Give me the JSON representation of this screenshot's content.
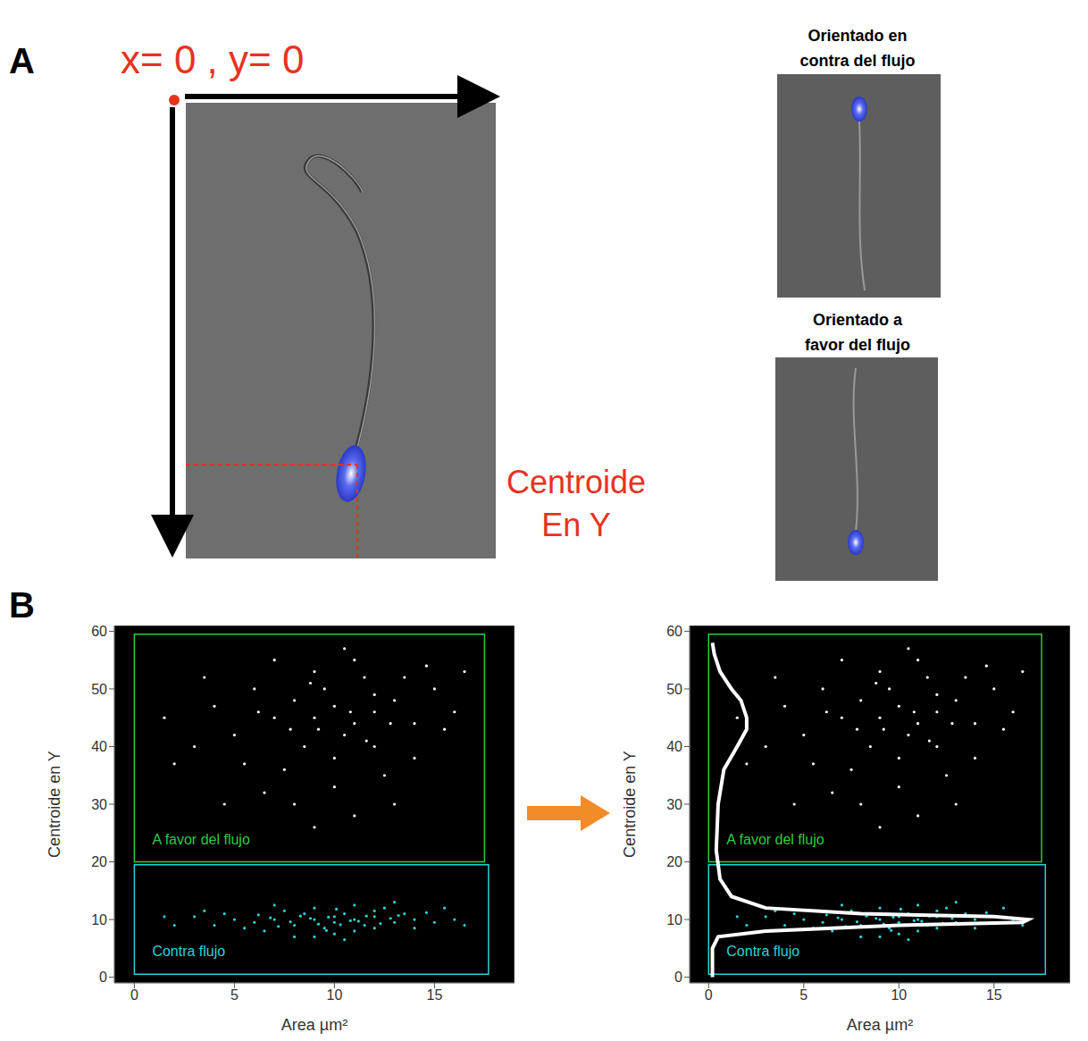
{
  "panel_labels": [
    "A",
    "B"
  ],
  "panel_a": {
    "origin_label": "x= 0 , y= 0",
    "centroid_label": [
      "Centroide",
      "En Y"
    ],
    "image_titles": [
      [
        "Orientado en",
        "contra del flujo"
      ],
      [
        "Orientado a",
        "favor del flujo"
      ]
    ]
  },
  "chart_data": [
    {
      "type": "scatter",
      "x_label": "Area µm²",
      "y_label": "Centroide en Y",
      "xlim": [
        -1,
        19
      ],
      "xticks": [
        0,
        5,
        10,
        15
      ],
      "ylim": [
        -1,
        61
      ],
      "yticks": [
        0,
        10,
        20,
        30,
        40,
        50,
        60
      ],
      "gates": [
        {
          "name": "A favor del flujo",
          "color": "#2ecc40",
          "x": [
            0,
            17.5
          ],
          "y": [
            20,
            59.5
          ]
        },
        {
          "name": "Contra flujo",
          "color": "#2ad4d4",
          "x": [
            0,
            17.7
          ],
          "y": [
            0.5,
            19.5
          ]
        }
      ],
      "series": [
        {
          "type": "scatter",
          "color": "#ffffff",
          "points": [
            [
              9,
              45
            ],
            [
              10,
              47
            ],
            [
              11,
              44
            ],
            [
              8,
              48
            ],
            [
              12,
              46
            ],
            [
              9.5,
              50
            ],
            [
              10.5,
              42
            ],
            [
              7,
              45
            ],
            [
              13,
              48
            ],
            [
              11.5,
              52
            ],
            [
              8.5,
              40
            ],
            [
              10,
              38
            ],
            [
              12,
              40
            ],
            [
              6,
              50
            ],
            [
              14,
              44
            ],
            [
              9,
              53
            ],
            [
              11,
              55
            ],
            [
              7.5,
              36
            ],
            [
              13.5,
              52
            ],
            [
              10,
              33
            ],
            [
              5,
              42
            ],
            [
              15,
              50
            ],
            [
              4,
              47
            ],
            [
              12.5,
              35
            ],
            [
              8,
              30
            ],
            [
              11,
              28
            ],
            [
              6.5,
              32
            ],
            [
              14,
              38
            ],
            [
              9,
              26
            ],
            [
              3,
              40
            ],
            [
              16,
              46
            ],
            [
              2,
              37
            ],
            [
              13,
              30
            ],
            [
              7,
              55
            ],
            [
              10.5,
              57
            ],
            [
              12,
              49
            ],
            [
              9.2,
              43
            ],
            [
              10.8,
              46
            ],
            [
              8.8,
              51
            ],
            [
              11.6,
              41
            ],
            [
              7.8,
              43
            ],
            [
              12.8,
              44
            ],
            [
              6.2,
              46
            ],
            [
              14.6,
              54
            ],
            [
              5.5,
              37
            ],
            [
              3.5,
              52
            ],
            [
              15.5,
              43
            ],
            [
              1.5,
              45
            ],
            [
              4.5,
              30
            ],
            [
              16.5,
              53
            ]
          ]
        },
        {
          "type": "scatter",
          "color": "#2ad4d4",
          "points": [
            [
              9,
              10
            ],
            [
              10,
              9.5
            ],
            [
              11,
              10
            ],
            [
              8,
              9
            ],
            [
              12,
              10.5
            ],
            [
              9.5,
              8.5
            ],
            [
              10.5,
              11
            ],
            [
              7,
              10
            ],
            [
              13,
              9.5
            ],
            [
              11.5,
              9
            ],
            [
              8.5,
              11
            ],
            [
              10,
              10.5
            ],
            [
              12,
              8.5
            ],
            [
              6,
              9.5
            ],
            [
              14,
              10
            ],
            [
              9,
              12
            ],
            [
              11,
              8
            ],
            [
              7.5,
              11.5
            ],
            [
              13.5,
              11
            ],
            [
              10,
              7.5
            ],
            [
              5,
              10
            ],
            [
              15,
              9.5
            ],
            [
              4,
              9
            ],
            [
              12.5,
              12
            ],
            [
              8,
              7
            ],
            [
              11,
              12.5
            ],
            [
              6.5,
              8
            ],
            [
              14,
              8.5
            ],
            [
              9,
              7
            ],
            [
              3,
              10.5
            ],
            [
              16,
              10
            ],
            [
              2,
              9
            ],
            [
              13,
              13
            ],
            [
              7,
              12.5
            ],
            [
              10.5,
              6.5
            ],
            [
              12,
              11.5
            ],
            [
              9.2,
              9.2
            ],
            [
              10.8,
              9.8
            ],
            [
              8.8,
              10.2
            ],
            [
              11.6,
              10.6
            ],
            [
              7.8,
              9.6
            ],
            [
              12.8,
              10.2
            ],
            [
              6.2,
              10.8
            ],
            [
              14.6,
              11.2
            ],
            [
              5.5,
              8.5
            ],
            [
              3.5,
              11.5
            ],
            [
              15.5,
              12
            ],
            [
              1.5,
              10.5
            ],
            [
              4.5,
              11
            ],
            [
              16.5,
              9
            ],
            [
              9.7,
              10.4
            ],
            [
              10.3,
              9.1
            ],
            [
              11.2,
              9.7
            ],
            [
              8.3,
              10.6
            ],
            [
              12.3,
              9.3
            ],
            [
              7.2,
              8.8
            ],
            [
              13.2,
              10.7
            ],
            [
              6.8,
              10.3
            ],
            [
              10.1,
              11.8
            ],
            [
              9.6,
              8.1
            ]
          ]
        }
      ]
    },
    {
      "type": "scatter",
      "x_label": "Area µm²",
      "y_label": "Centroide en Y",
      "xlim": [
        -1,
        19
      ],
      "xticks": [
        0,
        5,
        10,
        15
      ],
      "ylim": [
        -1,
        61
      ],
      "yticks": [
        0,
        10,
        20,
        30,
        40,
        50,
        60
      ],
      "gates": [
        {
          "name": "A favor del flujo",
          "color": "#2ecc40",
          "x": [
            0,
            17.5
          ],
          "y": [
            20,
            59.5
          ]
        },
        {
          "name": "Contra flujo",
          "color": "#2ad4d4",
          "x": [
            0,
            17.7
          ],
          "y": [
            0.5,
            19.5
          ]
        }
      ],
      "series": [
        {
          "type": "scatter",
          "color": "#ffffff",
          "points": [
            [
              9,
              45
            ],
            [
              10,
              47
            ],
            [
              11,
              44
            ],
            [
              8,
              48
            ],
            [
              12,
              46
            ],
            [
              9.5,
              50
            ],
            [
              10.5,
              42
            ],
            [
              7,
              45
            ],
            [
              13,
              48
            ],
            [
              11.5,
              52
            ],
            [
              8.5,
              40
            ],
            [
              10,
              38
            ],
            [
              12,
              40
            ],
            [
              6,
              50
            ],
            [
              14,
              44
            ],
            [
              9,
              53
            ],
            [
              11,
              55
            ],
            [
              7.5,
              36
            ],
            [
              13.5,
              52
            ],
            [
              10,
              33
            ],
            [
              5,
              42
            ],
            [
              15,
              50
            ],
            [
              4,
              47
            ],
            [
              12.5,
              35
            ],
            [
              8,
              30
            ],
            [
              11,
              28
            ],
            [
              6.5,
              32
            ],
            [
              14,
              38
            ],
            [
              9,
              26
            ],
            [
              3,
              40
            ],
            [
              16,
              46
            ],
            [
              2,
              37
            ],
            [
              13,
              30
            ],
            [
              7,
              55
            ],
            [
              10.5,
              57
            ],
            [
              12,
              49
            ],
            [
              9.2,
              43
            ],
            [
              10.8,
              46
            ],
            [
              8.8,
              51
            ],
            [
              11.6,
              41
            ],
            [
              7.8,
              43
            ],
            [
              12.8,
              44
            ],
            [
              6.2,
              46
            ],
            [
              14.6,
              54
            ],
            [
              5.5,
              37
            ],
            [
              3.5,
              52
            ],
            [
              15.5,
              43
            ],
            [
              1.5,
              45
            ],
            [
              4.5,
              30
            ],
            [
              16.5,
              53
            ]
          ]
        },
        {
          "type": "scatter",
          "color": "#2ad4d4",
          "points": [
            [
              9,
              10
            ],
            [
              10,
              9.5
            ],
            [
              11,
              10
            ],
            [
              8,
              9
            ],
            [
              12,
              10.5
            ],
            [
              9.5,
              8.5
            ],
            [
              10.5,
              11
            ],
            [
              7,
              10
            ],
            [
              13,
              9.5
            ],
            [
              11.5,
              9
            ],
            [
              8.5,
              11
            ],
            [
              10,
              10.5
            ],
            [
              12,
              8.5
            ],
            [
              6,
              9.5
            ],
            [
              14,
              10
            ],
            [
              9,
              12
            ],
            [
              11,
              8
            ],
            [
              7.5,
              11.5
            ],
            [
              13.5,
              11
            ],
            [
              10,
              7.5
            ],
            [
              5,
              10
            ],
            [
              15,
              9.5
            ],
            [
              4,
              9
            ],
            [
              12.5,
              12
            ],
            [
              8,
              7
            ],
            [
              11,
              12.5
            ],
            [
              6.5,
              8
            ],
            [
              14,
              8.5
            ],
            [
              9,
              7
            ],
            [
              3,
              10.5
            ],
            [
              16,
              10
            ],
            [
              2,
              9
            ],
            [
              13,
              13
            ],
            [
              7,
              12.5
            ],
            [
              10.5,
              6.5
            ],
            [
              12,
              11.5
            ],
            [
              9.2,
              9.2
            ],
            [
              10.8,
              9.8
            ],
            [
              8.8,
              10.2
            ],
            [
              11.6,
              10.6
            ],
            [
              7.8,
              9.6
            ],
            [
              12.8,
              10.2
            ],
            [
              6.2,
              10.8
            ],
            [
              14.6,
              11.2
            ],
            [
              5.5,
              8.5
            ],
            [
              3.5,
              11.5
            ],
            [
              15.5,
              12
            ],
            [
              1.5,
              10.5
            ],
            [
              4.5,
              11
            ],
            [
              16.5,
              9
            ],
            [
              9.7,
              10.4
            ],
            [
              10.3,
              9.1
            ],
            [
              11.2,
              9.7
            ],
            [
              8.3,
              10.6
            ],
            [
              12.3,
              9.3
            ],
            [
              7.2,
              8.8
            ],
            [
              13.2,
              10.7
            ],
            [
              6.8,
              10.3
            ],
            [
              10.1,
              11.8
            ],
            [
              9.6,
              8.1
            ]
          ]
        },
        {
          "type": "line",
          "color": "#ffffff",
          "points": [
            [
              0.2,
              0
            ],
            [
              0.2,
              5
            ],
            [
              0.5,
              7
            ],
            [
              3,
              8
            ],
            [
              10,
              9
            ],
            [
              16.5,
              9.5
            ],
            [
              16.8,
              10
            ],
            [
              15,
              10.5
            ],
            [
              8,
              11
            ],
            [
              3,
              12
            ],
            [
              1.2,
              14
            ],
            [
              0.6,
              17
            ],
            [
              0.4,
              22
            ],
            [
              0.5,
              30
            ],
            [
              0.8,
              36
            ],
            [
              1.5,
              40
            ],
            [
              2,
              43
            ],
            [
              2,
              45
            ],
            [
              1.7,
              48
            ],
            [
              1.2,
              50
            ],
            [
              0.6,
              53
            ],
            [
              0.3,
              56
            ],
            [
              0.2,
              58
            ]
          ]
        }
      ]
    }
  ]
}
